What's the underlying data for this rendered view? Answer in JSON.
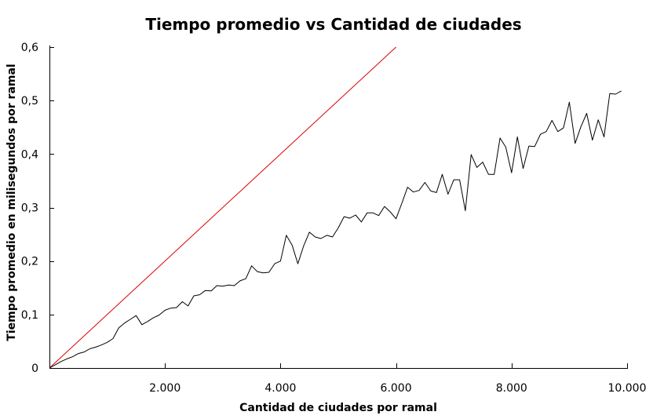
{
  "chart_data": {
    "type": "line",
    "title": "Tiempo promedio vs Cantidad de ciudades",
    "xlabel": "Cantidad de ciudades por ramal",
    "ylabel": "Tiempo promedio en milisegundos por ramal",
    "xlim": [
      0,
      10000
    ],
    "ylim": [
      0,
      0.6
    ],
    "x_ticks": [
      {
        "value": 2000,
        "label": "2.000"
      },
      {
        "value": 4000,
        "label": "4.000"
      },
      {
        "value": 6000,
        "label": "6.000"
      },
      {
        "value": 8000,
        "label": "8.000"
      },
      {
        "value": 10000,
        "label": "10.000"
      }
    ],
    "y_ticks": [
      {
        "value": 0,
        "label": "0"
      },
      {
        "value": 0.1,
        "label": "0,1"
      },
      {
        "value": 0.2,
        "label": "0,2"
      },
      {
        "value": 0.3,
        "label": "0,3"
      },
      {
        "value": 0.4,
        "label": "0,4"
      },
      {
        "value": 0.5,
        "label": "0,5"
      },
      {
        "value": 0.6,
        "label": "0,6"
      }
    ],
    "grid": false,
    "legend": "none",
    "series": [
      {
        "color": "#dd0000",
        "x": [
          0,
          6000
        ],
        "y": [
          0,
          0.6
        ]
      },
      {
        "color": "#000000",
        "x": [
          0,
          100,
          200,
          300,
          400,
          500,
          600,
          700,
          800,
          900,
          1000,
          1100,
          1200,
          1300,
          1400,
          1500,
          1600,
          1700,
          1800,
          1900,
          2000,
          2100,
          2200,
          2300,
          2400,
          2500,
          2600,
          2700,
          2800,
          2900,
          3000,
          3100,
          3200,
          3300,
          3400,
          3500,
          3600,
          3700,
          3800,
          3900,
          4000,
          4100,
          4200,
          4300,
          4400,
          4500,
          4600,
          4700,
          4800,
          4900,
          5000,
          5100,
          5200,
          5300,
          5400,
          5500,
          5600,
          5700,
          5800,
          5900,
          6000,
          6100,
          6200,
          6300,
          6400,
          6500,
          6600,
          6700,
          6800,
          6900,
          7000,
          7100,
          7200,
          7300,
          7400,
          7500,
          7600,
          7700,
          7800,
          7900,
          8000,
          8100,
          8200,
          8300,
          8400,
          8500,
          8600,
          8700,
          8800,
          8900,
          9000,
          9100,
          9200,
          9300,
          9400,
          9500,
          9600,
          9700,
          9800,
          9900
        ],
        "y": [
          0,
          0.006,
          0.012,
          0.017,
          0.021,
          0.027,
          0.03,
          0.036,
          0.039,
          0.043,
          0.048,
          0.055,
          0.075,
          0.084,
          0.091,
          0.098,
          0.081,
          0.087,
          0.094,
          0.099,
          0.108,
          0.112,
          0.113,
          0.124,
          0.116,
          0.135,
          0.137,
          0.145,
          0.144,
          0.154,
          0.153,
          0.155,
          0.154,
          0.163,
          0.167,
          0.191,
          0.18,
          0.178,
          0.179,
          0.195,
          0.2,
          0.248,
          0.23,
          0.195,
          0.228,
          0.254,
          0.245,
          0.242,
          0.248,
          0.245,
          0.262,
          0.283,
          0.28,
          0.286,
          0.273,
          0.29,
          0.29,
          0.285,
          0.302,
          0.292,
          0.279,
          0.308,
          0.338,
          0.329,
          0.332,
          0.347,
          0.331,
          0.328,
          0.362,
          0.325,
          0.352,
          0.352,
          0.294,
          0.399,
          0.375,
          0.385,
          0.362,
          0.362,
          0.43,
          0.413,
          0.365,
          0.432,
          0.373,
          0.415,
          0.414,
          0.437,
          0.442,
          0.463,
          0.442,
          0.449,
          0.497,
          0.42,
          0.451,
          0.476,
          0.426,
          0.464,
          0.432,
          0.513,
          0.512,
          0.518
        ]
      }
    ]
  }
}
